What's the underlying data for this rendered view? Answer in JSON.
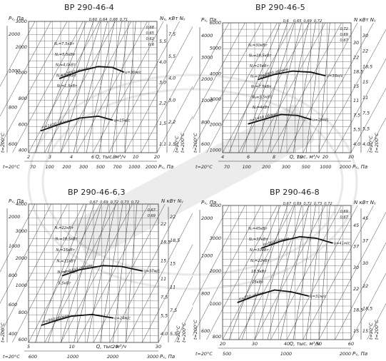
{
  "charts": [
    {
      "title": "ВР 290-46-4",
      "pv_label": "Pᵥ, Па",
      "n_label": "Nᵧ, кВт  Nᵧ",
      "q_label": "Q, тыс. м³/ч",
      "pv_bottom_label": "Pᵥ, Па",
      "temp_label": "t=20°C",
      "temp_label_2": "t=200°C",
      "eff_labels": [
        "0,60",
        "0,64",
        "0,68",
        "0,71"
      ],
      "eff_labels_low": [
        "0,68",
        "0,65",
        "0,62",
        "0,6"
      ],
      "pv_ticks": [
        "3000",
        "2000",
        "1000",
        "800",
        "600",
        "400"
      ],
      "pv_ticks_200": [
        "2000",
        "1000",
        "800",
        "600"
      ],
      "q_ticks": [
        "2",
        "3",
        "4",
        "6",
        "8",
        "10",
        "20"
      ],
      "pvb_ticks": [
        "70",
        "100",
        "200",
        "300",
        "500",
        "700",
        "1000",
        "2000"
      ],
      "n_ticks": [
        "7,5",
        "5,5",
        "4,0",
        "3,0",
        "2,2",
        "1,5"
      ],
      "n_ticks_2": [
        "5,5",
        "4,0",
        "3,0",
        "2,2",
        "1,5",
        "1,1"
      ],
      "motor_labels": [
        "Nᵧ=7,5кВт",
        "Nᵧ=5,5кВт",
        "Nᵧ=4,0кВт",
        "Nᵧ=2,2кВт",
        "Nᵧ=1,5кВт"
      ],
      "speed_labels": [
        "n=2850 об/мин",
        "n=1420 об/мин"
      ],
      "vel_labels": [
        "u=30м/с",
        "u=15м/с"
      ]
    },
    {
      "title": "ВР 290-46-5",
      "pv_label": "Pᵥ, Па",
      "n_label": "N  кВт  Nᵧ",
      "q_label": "Q, тыс. м³/ч",
      "pv_bottom_label": "Pᵥ, Па",
      "temp_label": "t=20°C",
      "temp_label_2": "t=200°C",
      "eff_labels": [
        "0,6",
        "0,65",
        "0,69",
        "0,72"
      ],
      "eff_labels_low": [
        "0,72",
        "0,69",
        "0,67"
      ],
      "pv_ticks": [
        "6000",
        "5000",
        "4000",
        "3000",
        "2000",
        "1000"
      ],
      "pv_ticks_200": [
        "4000",
        "3000",
        "2000",
        "1000",
        "800",
        "600"
      ],
      "q_ticks": [
        "4",
        "6",
        "8",
        "10",
        "20",
        "30"
      ],
      "pvb_ticks": [
        "70",
        "100",
        "200",
        "300",
        "500",
        "1000",
        "2000"
      ],
      "n_ticks": [
        "30",
        "22",
        "18,5",
        "15",
        "11",
        "7,5",
        "5,5",
        "4,0"
      ],
      "n_ticks_2": [
        "30",
        "22",
        "18,5",
        "15",
        "11",
        "7,5",
        "5,5",
        "4,0"
      ],
      "motor_labels": [
        "Nᵧ=30кВт",
        "Nᵧ=18,5кВт",
        "Nᵧ=15кВт",
        "Nᵧ=11кВт",
        "Nᵧ=7,5кВт",
        "Nᵧ=5,5кВт",
        "Nᵧ=4кВт"
      ],
      "speed_labels": [
        "n=2900 об/мин",
        "n=1450 об/мин"
      ],
      "vel_labels": [
        "u=36м/с",
        "u=19м/с"
      ]
    },
    {
      "title": "ВР 290-46-6,3",
      "pv_label": "Pᵥ, Па",
      "n_label": "N  кВт  Nᵧ",
      "q_label": "Q, тыс. м³/ч",
      "pv_bottom_label": "Pᵥ, Па",
      "temp_label": "t=20°C",
      "temp_label_2": "t=200°C",
      "eff_labels": [
        "0,67",
        "0,69",
        "0,72",
        "0,73",
        "0,72"
      ],
      "eff_labels_low": [
        "0,67",
        "0,69"
      ],
      "pv_ticks": [
        "4000",
        "3000",
        "2000",
        "1000",
        "800",
        "600"
      ],
      "pv_ticks_200": [
        "2000",
        "1000",
        "800",
        "600",
        "400"
      ],
      "q_ticks": [
        "5",
        "10",
        "20",
        "30"
      ],
      "pvb_ticks": [
        "600",
        "1000",
        "2000",
        "3000"
      ],
      "n_ticks": [
        "22",
        "18,5",
        "15",
        "11",
        "7,5",
        "5,5"
      ],
      "n_ticks_2": [
        "22",
        "18,5",
        "15",
        "11",
        "7,5",
        "5,5",
        "4,0"
      ],
      "motor_labels": [
        "Nᵧ=22кВт",
        "Nᵧ=18,5кВт",
        "Nᵧ=15кВт",
        "Nᵧ=11кВт",
        "Nᵧ=7,5кВт",
        "5,5кВт"
      ],
      "speed_labels": [
        "n=1450 об/мин",
        "n=960 об/мин"
      ],
      "vel_labels": [
        "u=37м/с",
        "u=24м/с"
      ]
    },
    {
      "title": "ВР 290-46-8",
      "pv_label": "Pᵥ, Па",
      "n_label": "N  кВт  Nᵧ",
      "q_label": "Q, тыс. м³/ч",
      "pv_bottom_label": "Pᵥ, Па",
      "temp_label": "t=20°C",
      "temp_label_2": "t=200°C",
      "eff_labels": [
        "0,67",
        "0,69",
        "0,72",
        "0,73",
        "0,72"
      ],
      "eff_labels_low": [
        "0,69",
        "0,67"
      ],
      "pv_ticks": [
        "4000",
        "3000",
        "2000",
        "1000",
        "800"
      ],
      "pv_ticks_200": [
        "2000",
        "1000",
        "800",
        "600"
      ],
      "q_ticks": [
        "20",
        "30",
        "40",
        "50",
        "60"
      ],
      "pvb_ticks": [
        "500",
        "1000",
        "2000"
      ],
      "n_ticks": [
        "45",
        "37",
        "30",
        "22",
        "18,5",
        "15"
      ],
      "n_ticks_2": [
        "45",
        "37",
        "30",
        "22",
        "18,5",
        "15"
      ],
      "motor_labels": [
        "Nᵧ=45кВт",
        "Nᵧ=37кВт",
        "Nᵧ=30кВт",
        "Nᵧ=22кВт",
        "18,5кВт",
        "15кВт"
      ],
      "speed_labels": [
        "n=960 об/мин",
        "n=730 об/мин"
      ],
      "vel_labels": [
        "u=41м/с",
        "u=31м/с"
      ]
    }
  ],
  "chart_data": [
    {
      "type": "line",
      "title": "ВР 290-46-4",
      "xlabel": "Q, тыс. м³/ч",
      "ylabel": "Pᵥ, Па",
      "x_scale": "log",
      "y_scale": "log",
      "xlim": [
        2,
        20
      ],
      "ylim": [
        400,
        3000
      ],
      "grid": true,
      "series": [
        {
          "name": "n=2850 об/мин",
          "x": [
            3.5,
            5,
            7,
            9,
            11
          ],
          "y": [
            1250,
            1400,
            1500,
            1480,
            1380
          ]
        },
        {
          "name": "n=1420 об/мин",
          "x": [
            2.5,
            3.5,
            5,
            7,
            9
          ],
          "y": [
            560,
            620,
            680,
            700,
            660
          ]
        }
      ]
    },
    {
      "type": "line",
      "title": "ВР 290-46-5",
      "xlabel": "Q, тыс. м³/ч",
      "ylabel": "Pᵥ, Па",
      "x_scale": "log",
      "y_scale": "log",
      "xlim": [
        4,
        30
      ],
      "ylim": [
        600,
        6000
      ],
      "grid": true,
      "series": [
        {
          "name": "n=2900 об/мин",
          "x": [
            7,
            9,
            12,
            16,
            20
          ],
          "y": [
            2200,
            2400,
            2550,
            2500,
            2350
          ]
        },
        {
          "name": "n=1450 об/мин",
          "x": [
            6,
            8,
            10,
            13,
            16
          ],
          "y": [
            1000,
            1100,
            1180,
            1160,
            1080
          ]
        }
      ]
    },
    {
      "type": "line",
      "title": "ВР 290-46-6,3",
      "xlabel": "Q, тыс. м³/ч",
      "ylabel": "Pᵥ, Па",
      "x_scale": "log",
      "y_scale": "log",
      "xlim": [
        5,
        30
      ],
      "ylim": [
        600,
        4000
      ],
      "grid": true,
      "series": [
        {
          "name": "n=1450 об/мин",
          "x": [
            8,
            10,
            14,
            18,
            24
          ],
          "y": [
            1500,
            1620,
            1720,
            1700,
            1600
          ]
        },
        {
          "name": "n=960 об/мин",
          "x": [
            6,
            7,
            9,
            12,
            16
          ],
          "y": [
            760,
            800,
            860,
            880,
            840
          ]
        }
      ]
    },
    {
      "type": "line",
      "title": "ВР 290-46-8",
      "xlabel": "Q, тыс. м³/ч",
      "ylabel": "Pᵥ, Па",
      "x_scale": "log",
      "y_scale": "log",
      "xlim": [
        15,
        70
      ],
      "ylim": [
        800,
        4000
      ],
      "grid": true,
      "series": [
        {
          "name": "n=960 об/мин",
          "x": [
            24,
            30,
            38,
            46,
            56
          ],
          "y": [
            2400,
            2600,
            2750,
            2700,
            2550
          ]
        },
        {
          "name": "n=730 об/мин",
          "x": [
            18,
            22,
            28,
            34,
            42
          ],
          "y": [
            1250,
            1350,
            1450,
            1420,
            1350
          ]
        }
      ]
    }
  ]
}
